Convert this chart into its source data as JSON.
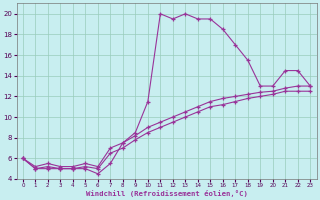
{
  "xlabel": "Windchill (Refroidissement éolien,°C)",
  "bg_color": "#c8eef0",
  "grid_color": "#99ccbb",
  "line_color": "#993399",
  "x_hours": [
    0,
    1,
    2,
    3,
    4,
    5,
    6,
    7,
    8,
    9,
    10,
    11,
    12,
    13,
    14,
    15,
    16,
    17,
    18,
    19,
    20,
    21,
    22,
    23
  ],
  "curve1": [
    6.0,
    5.0,
    5.0,
    5.0,
    5.0,
    5.0,
    4.5,
    5.5,
    7.5,
    8.5,
    11.5,
    20.0,
    19.5,
    20.0,
    19.5,
    19.5,
    18.5,
    17.0,
    15.5,
    13.0,
    13.0,
    14.5,
    14.5,
    13.0
  ],
  "curve2": [
    6.0,
    5.2,
    5.5,
    5.2,
    5.2,
    5.5,
    5.2,
    7.0,
    7.5,
    8.2,
    9.0,
    9.5,
    10.0,
    10.5,
    11.0,
    11.5,
    11.8,
    12.0,
    12.2,
    12.4,
    12.5,
    12.8,
    13.0,
    13.0
  ],
  "curve3": [
    6.0,
    5.0,
    5.2,
    5.0,
    5.0,
    5.2,
    5.0,
    6.5,
    7.0,
    7.8,
    8.5,
    9.0,
    9.5,
    10.0,
    10.5,
    11.0,
    11.2,
    11.5,
    11.8,
    12.0,
    12.2,
    12.5,
    12.5,
    12.5
  ],
  "ylim": [
    4,
    21
  ],
  "yticks": [
    4,
    6,
    8,
    10,
    12,
    14,
    16,
    18,
    20
  ],
  "xticks": [
    0,
    1,
    2,
    3,
    4,
    5,
    6,
    7,
    8,
    9,
    10,
    11,
    12,
    13,
    14,
    15,
    16,
    17,
    18,
    19,
    20,
    21,
    22,
    23
  ]
}
